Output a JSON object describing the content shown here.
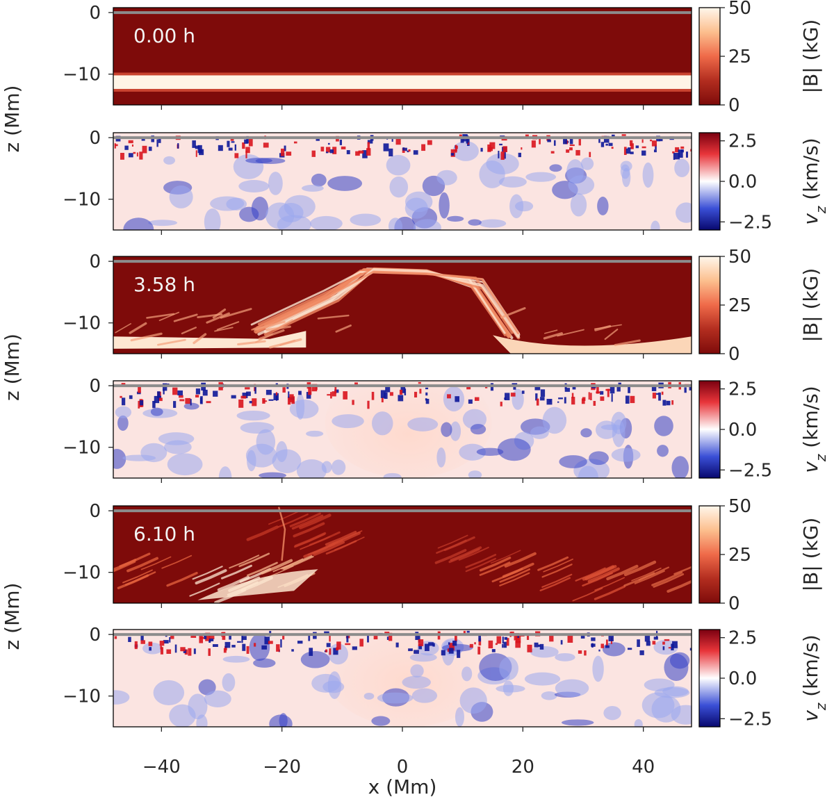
{
  "chart_data": {
    "type": "heatmap",
    "x_axis": {
      "label": "x (Mm)",
      "range": [
        -48,
        48
      ],
      "ticks": [
        -40,
        -20,
        0,
        20,
        40
      ],
      "tick_labels": [
        "−40",
        "−20",
        "0",
        "20",
        "40"
      ]
    },
    "z_axis": {
      "label": "z (Mm)",
      "range": [
        -15,
        0.8
      ],
      "ticks": [
        0,
        -10
      ],
      "tick_labels": [
        "0",
        "−10"
      ]
    },
    "surface_line": {
      "z": 0,
      "color": "#8c8c8c"
    },
    "colorbars": {
      "B": {
        "label": "|B| (kG)",
        "range": [
          0,
          50
        ],
        "ticks": [
          50,
          25,
          0
        ],
        "tick_labels": [
          "50",
          "25",
          "0"
        ],
        "colors": [
          "#7e0b0a",
          "#f7f2e8"
        ]
      },
      "vz": {
        "label": "v",
        "label_subscript": "z",
        "label_units": " (km/s)",
        "range": [
          -3,
          3
        ],
        "ticks": [
          2.5,
          0.0,
          -2.5
        ],
        "tick_labels": [
          "2.5",
          "0.0",
          "−2.5"
        ],
        "colors": [
          "#08086e",
          "#ffffff",
          "#7a0010"
        ]
      }
    },
    "panels": [
      {
        "variable": "B",
        "time_label": "0.00 h"
      },
      {
        "variable": "vz"
      },
      {
        "variable": "B",
        "time_label": "3.58 h"
      },
      {
        "variable": "vz"
      },
      {
        "variable": "B",
        "time_label": "6.10 h"
      },
      {
        "variable": "vz"
      }
    ],
    "z_label_instances": 3
  }
}
